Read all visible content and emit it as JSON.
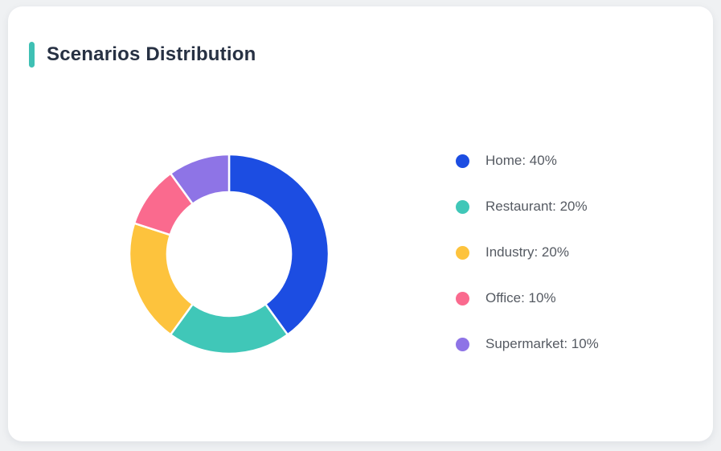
{
  "page": {
    "background": "#EFF1F3"
  },
  "card": {
    "title": "Scenarios Distribution",
    "accent_color": "#3FC0B4"
  },
  "chart_data": {
    "type": "pie",
    "variant": "donut",
    "title": "Scenarios Distribution",
    "categories": [
      "Home",
      "Restaurant",
      "Industry",
      "Office",
      "Supermarket"
    ],
    "values": [
      40,
      20,
      20,
      10,
      10
    ],
    "unit": "%",
    "colors": [
      "#1C4DE2",
      "#40C7B8",
      "#FDC33D",
      "#FA6A8E",
      "#8E74E6"
    ],
    "start_angle_deg": 0,
    "direction": "clockwise",
    "inner_radius_ratio": 0.62,
    "separator_color": "#FFFFFF",
    "legend": {
      "position": "right",
      "items": [
        {
          "label": "Home",
          "value": 40,
          "text": "Home: 40%"
        },
        {
          "label": "Restaurant",
          "value": 20,
          "text": "Restaurant: 20%"
        },
        {
          "label": "Industry",
          "value": 20,
          "text": "Industry: 20%"
        },
        {
          "label": "Office",
          "value": 10,
          "text": "Office: 10%"
        },
        {
          "label": "Supermarket",
          "value": 10,
          "text": "Supermarket: 10%"
        }
      ]
    }
  }
}
